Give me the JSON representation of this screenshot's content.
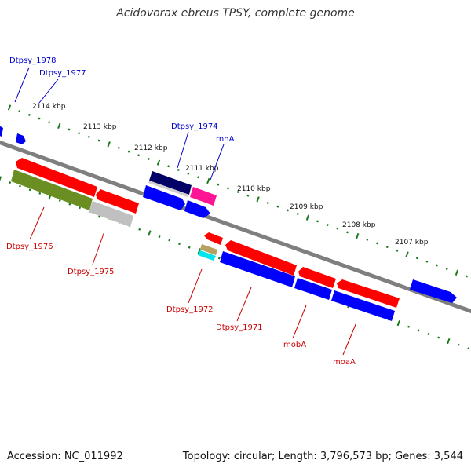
{
  "title": "Acidovorax ebreus TPSY, complete genome",
  "footer": {
    "accession": "Accession: NC_011992",
    "summary": "Topology: circular; Length: 3,796,573 bp; Genes: 3,544"
  },
  "colors": {
    "backbone": "#7a7a7a",
    "tick": "#1a7a1a",
    "forward_label": "#0000cc",
    "reverse_label": "#cc0000",
    "red_gene": "#ff0000",
    "blue_gene": "#0000ff",
    "navy_gene": "#000066",
    "magenta_gene": "#ff1493",
    "olive_gene": "#6b8e23",
    "gray_gene": "#bdbdbd",
    "tan_gene": "#b8a060",
    "cyan_gene": "#00e5ee"
  },
  "kbp_ticks": [
    "2114 kbp",
    "2113 kbp",
    "2112 kbp",
    "2111 kbp",
    "2110 kbp",
    "2109 kbp",
    "2108 kbp",
    "2107 kbp"
  ],
  "forward_labels": [
    "Dtpsy_1978",
    "Dtpsy_1977",
    "Dtpsy_1974",
    "rnhA"
  ],
  "reverse_labels": [
    "Dtpsy_1976",
    "Dtpsy_1975",
    "Dtpsy_1972",
    "Dtpsy_1971",
    "mobA",
    "moaA"
  ]
}
